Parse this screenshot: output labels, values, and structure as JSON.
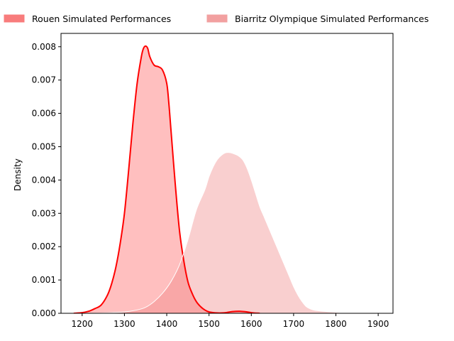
{
  "chart_data": {
    "type": "area",
    "title": "",
    "xlabel": "",
    "ylabel": "Density",
    "xlim": [
      1150,
      1935
    ],
    "ylim": [
      0,
      0.0084
    ],
    "x_ticks": [
      1200,
      1300,
      1400,
      1500,
      1600,
      1700,
      1800,
      1900
    ],
    "y_ticks": [
      0.0,
      0.001,
      0.002,
      0.003,
      0.004,
      0.005,
      0.006,
      0.007,
      0.008
    ],
    "y_tick_labels": [
      "0.000",
      "0.001",
      "0.002",
      "0.003",
      "0.004",
      "0.005",
      "0.006",
      "0.007",
      "0.008"
    ],
    "grid": false,
    "legend_position": "top",
    "series": [
      {
        "name": "Rouen Simulated Performances",
        "fill_color": "#ff0000",
        "fill_opacity": 0.25,
        "line_color": "#ff0000",
        "legend_color": "#f87c7c",
        "x": [
          1180,
          1200,
          1215,
          1230,
          1245,
          1260,
          1270,
          1280,
          1290,
          1300,
          1310,
          1320,
          1330,
          1340,
          1345,
          1350,
          1355,
          1360,
          1370,
          1380,
          1390,
          1400,
          1405,
          1410,
          1420,
          1430,
          1440,
          1450,
          1460,
          1470,
          1480,
          1490,
          1500,
          1510,
          1520,
          1530,
          1540,
          1555,
          1575,
          1590,
          1605,
          1620
        ],
        "values": [
          0.0,
          2e-05,
          6e-05,
          0.00014,
          0.00025,
          0.00055,
          0.0009,
          0.0014,
          0.0021,
          0.003,
          0.0043,
          0.0057,
          0.0069,
          0.0077,
          0.00795,
          0.00802,
          0.00795,
          0.0077,
          0.00745,
          0.0074,
          0.0073,
          0.0069,
          0.0063,
          0.0055,
          0.0039,
          0.0025,
          0.0016,
          0.00095,
          0.0006,
          0.00035,
          0.0002,
          0.0001,
          4e-05,
          2e-05,
          1e-05,
          1e-05,
          2e-05,
          5e-05,
          6e-05,
          4e-05,
          1e-05,
          0.0
        ]
      },
      {
        "name": "Biarritz Olympique Simulated Performances",
        "fill_color": "#f08080",
        "fill_opacity": 0.38,
        "line_color": "#ffffff",
        "legend_color": "#f2a0a0",
        "x": [
          1200,
          1250,
          1300,
          1330,
          1350,
          1370,
          1390,
          1410,
          1430,
          1450,
          1470,
          1490,
          1500,
          1510,
          1520,
          1530,
          1540,
          1550,
          1560,
          1570,
          1580,
          1590,
          1600,
          1610,
          1620,
          1630,
          1640,
          1650,
          1660,
          1670,
          1680,
          1690,
          1700,
          1710,
          1720,
          1730,
          1740,
          1750,
          1770,
          1790,
          1810,
          1830,
          1860
        ],
        "values": [
          0.0,
          1e-05,
          4e-05,
          0.0001,
          0.00018,
          0.00035,
          0.0006,
          0.00095,
          0.00145,
          0.0022,
          0.0031,
          0.0037,
          0.0041,
          0.0044,
          0.00462,
          0.00475,
          0.00482,
          0.00482,
          0.00478,
          0.00472,
          0.0046,
          0.00435,
          0.004,
          0.0036,
          0.0032,
          0.0029,
          0.0026,
          0.0023,
          0.002,
          0.0017,
          0.0014,
          0.0011,
          0.0008,
          0.00055,
          0.00035,
          0.0002,
          0.00013,
          9e-05,
          6e-05,
          4e-05,
          2e-05,
          1e-05,
          0.0
        ]
      }
    ]
  }
}
